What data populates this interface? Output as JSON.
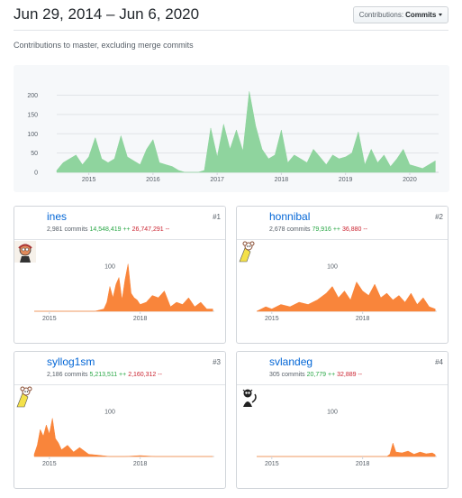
{
  "header": {
    "date_range": "Jun 29, 2014 – Jun 6, 2020",
    "dropdown_prefix": "Contributions:",
    "dropdown_value": "Commits"
  },
  "subtitle": "Contributions to master, excluding merge commits",
  "colors": {
    "main_area": "#8fd49e",
    "user_area": "#f9853b",
    "link": "#0366d6",
    "additions": "#28a745",
    "deletions": "#cb2431"
  },
  "chart_data": [
    {
      "type": "area",
      "title": "",
      "x_ticks": [
        "2015",
        "2016",
        "2017",
        "2018",
        "2019",
        "2020"
      ],
      "y_ticks": [
        "0",
        "50",
        "100",
        "150",
        "200"
      ],
      "ylim": [
        0,
        220
      ],
      "x": [
        2014.5,
        2014.6,
        2014.7,
        2014.8,
        2014.9,
        2015.0,
        2015.1,
        2015.2,
        2015.3,
        2015.4,
        2015.5,
        2015.6,
        2015.7,
        2015.8,
        2015.9,
        2016.0,
        2016.1,
        2016.2,
        2016.3,
        2016.4,
        2016.5,
        2016.6,
        2016.7,
        2016.8,
        2016.9,
        2017.0,
        2017.1,
        2017.2,
        2017.3,
        2017.4,
        2017.5,
        2017.6,
        2017.7,
        2017.8,
        2017.9,
        2018.0,
        2018.1,
        2018.2,
        2018.3,
        2018.4,
        2018.5,
        2018.6,
        2018.7,
        2018.8,
        2018.9,
        2019.0,
        2019.1,
        2019.2,
        2019.3,
        2019.4,
        2019.5,
        2019.6,
        2019.7,
        2019.8,
        2019.9,
        2020.0,
        2020.1,
        2020.2,
        2020.3,
        2020.4
      ],
      "values": [
        5,
        25,
        35,
        45,
        20,
        40,
        90,
        35,
        25,
        35,
        95,
        40,
        30,
        20,
        60,
        85,
        25,
        20,
        15,
        5,
        0,
        0,
        0,
        5,
        115,
        40,
        125,
        60,
        110,
        55,
        210,
        120,
        60,
        35,
        45,
        110,
        25,
        45,
        35,
        25,
        60,
        40,
        20,
        45,
        35,
        40,
        50,
        105,
        20,
        60,
        25,
        45,
        15,
        35,
        60,
        20,
        15,
        10,
        20,
        30
      ]
    },
    {
      "type": "area",
      "user": "ines",
      "x_ticks": [
        "2015",
        "2018"
      ],
      "y_ticks": [
        "100"
      ],
      "ylim": [
        0,
        140
      ],
      "x": [
        2014.5,
        2015.0,
        2015.5,
        2016.0,
        2016.5,
        2016.8,
        2016.9,
        2017.0,
        2017.1,
        2017.2,
        2017.3,
        2017.4,
        2017.5,
        2017.6,
        2017.7,
        2017.8,
        2017.9,
        2018.0,
        2018.2,
        2018.4,
        2018.6,
        2018.8,
        2019.0,
        2019.2,
        2019.4,
        2019.6,
        2019.8,
        2020.0,
        2020.2,
        2020.4
      ],
      "values": [
        0,
        0,
        0,
        0,
        0,
        5,
        20,
        55,
        30,
        60,
        75,
        25,
        70,
        105,
        40,
        30,
        25,
        15,
        20,
        35,
        30,
        45,
        10,
        20,
        15,
        30,
        10,
        20,
        5,
        5
      ]
    },
    {
      "type": "area",
      "user": "honnibal",
      "x_ticks": [
        "2015",
        "2018"
      ],
      "y_ticks": [
        "100"
      ],
      "ylim": [
        0,
        140
      ],
      "x": [
        2014.5,
        2014.8,
        2015.0,
        2015.3,
        2015.6,
        2015.9,
        2016.2,
        2016.5,
        2016.8,
        2017.0,
        2017.2,
        2017.4,
        2017.6,
        2017.8,
        2018.0,
        2018.2,
        2018.4,
        2018.6,
        2018.8,
        2019.0,
        2019.2,
        2019.4,
        2019.6,
        2019.8,
        2020.0,
        2020.2,
        2020.4
      ],
      "values": [
        0,
        10,
        5,
        15,
        10,
        20,
        15,
        25,
        40,
        55,
        30,
        45,
        25,
        65,
        45,
        35,
        60,
        30,
        40,
        25,
        35,
        20,
        40,
        15,
        30,
        10,
        5
      ]
    },
    {
      "type": "area",
      "user": "syllog1sm",
      "x_ticks": [
        "2015",
        "2018"
      ],
      "y_ticks": [
        "100"
      ],
      "ylim": [
        0,
        140
      ],
      "x": [
        2014.5,
        2014.6,
        2014.7,
        2014.8,
        2014.9,
        2015.0,
        2015.1,
        2015.2,
        2015.3,
        2015.4,
        2015.6,
        2015.8,
        2016.0,
        2016.3,
        2016.6,
        2017.0,
        2017.5,
        2018.0,
        2018.5,
        2019.0,
        2019.5,
        2020.0,
        2020.4
      ],
      "values": [
        5,
        25,
        60,
        45,
        70,
        50,
        85,
        40,
        30,
        15,
        25,
        10,
        20,
        5,
        3,
        0,
        0,
        2,
        0,
        0,
        0,
        0,
        0
      ]
    },
    {
      "type": "area",
      "user": "svlandeg",
      "x_ticks": [
        "2015",
        "2018"
      ],
      "y_ticks": [
        "100"
      ],
      "ylim": [
        0,
        140
      ],
      "x": [
        2014.5,
        2015.0,
        2016.0,
        2017.0,
        2018.0,
        2018.8,
        2018.9,
        2019.0,
        2019.1,
        2019.3,
        2019.5,
        2019.7,
        2019.9,
        2020.1,
        2020.3,
        2020.4
      ],
      "values": [
        0,
        0,
        0,
        0,
        0,
        0,
        5,
        30,
        10,
        8,
        12,
        5,
        10,
        6,
        8,
        4
      ]
    }
  ],
  "contributors": [
    {
      "name": "ines",
      "commits": "2,981 commits",
      "additions": "14,548,419 ++",
      "deletions": "26,747,291 --",
      "rank": "#1"
    },
    {
      "name": "honnibal",
      "commits": "2,678 commits",
      "additions": "79,916 ++",
      "deletions": "36,880 --",
      "rank": "#2"
    },
    {
      "name": "syllog1sm",
      "commits": "2,186 commits",
      "additions": "5,213,511 ++",
      "deletions": "2,160,312 --",
      "rank": "#3"
    },
    {
      "name": "svlandeg",
      "commits": "305 commits",
      "additions": "20,779 ++",
      "deletions": "32,889 --",
      "rank": "#4"
    }
  ]
}
